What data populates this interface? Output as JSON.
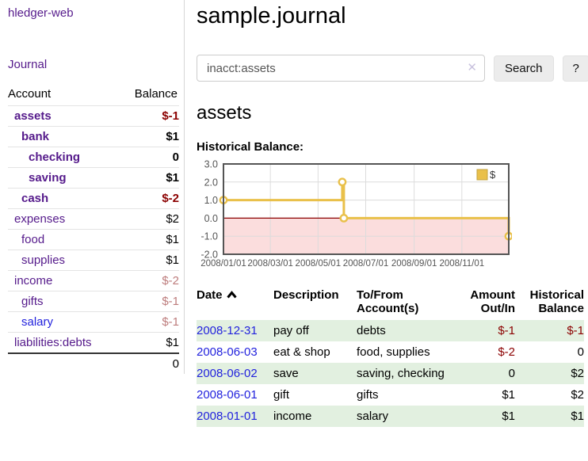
{
  "app": {
    "title": "hledger-web"
  },
  "sidebar": {
    "journal_link": "Journal",
    "accounts_table": {
      "headers": [
        "Account",
        "Balance"
      ],
      "rows": [
        {
          "name": "assets",
          "depth": 1,
          "bold": true,
          "name_class": "c-purple",
          "balance": "$-1",
          "balance_class": "amt-neg"
        },
        {
          "name": "bank",
          "depth": 2,
          "bold": true,
          "name_class": "c-purple",
          "balance": "$1",
          "balance_class": "amt-plain"
        },
        {
          "name": "checking",
          "depth": 3,
          "bold": true,
          "name_class": "c-purple",
          "balance": "0",
          "balance_class": "amt-plain"
        },
        {
          "name": "saving",
          "depth": 3,
          "bold": true,
          "name_class": "c-purple",
          "balance": "$1",
          "balance_class": "amt-plain"
        },
        {
          "name": "cash",
          "depth": 2,
          "bold": true,
          "name_class": "c-purple",
          "balance": "$-2",
          "balance_class": "amt-neg"
        },
        {
          "name": "expenses",
          "depth": 1,
          "bold": false,
          "name_class": "c-purple",
          "balance": "$2",
          "balance_class": "amt-plain"
        },
        {
          "name": "food",
          "depth": 2,
          "bold": false,
          "name_class": "c-purple",
          "balance": "$1",
          "balance_class": "amt-plain"
        },
        {
          "name": "supplies",
          "depth": 2,
          "bold": false,
          "name_class": "c-purple",
          "balance": "$1",
          "balance_class": "amt-plain"
        },
        {
          "name": "income",
          "depth": 1,
          "bold": false,
          "name_class": "c-purple",
          "balance": "$-2",
          "balance_class": "amt-rose"
        },
        {
          "name": "gifts",
          "depth": 2,
          "bold": false,
          "name_class": "c-purple",
          "balance": "$-1",
          "balance_class": "amt-rose"
        },
        {
          "name": "salary",
          "depth": 2,
          "bold": false,
          "name_class": "c-blue",
          "balance": "$-1",
          "balance_class": "amt-rose"
        },
        {
          "name": "liabilities:debts",
          "depth": 1,
          "bold": false,
          "name_class": "c-purple",
          "balance": "$1",
          "balance_class": "amt-plain"
        }
      ],
      "total": "0"
    }
  },
  "main": {
    "title": "sample.journal",
    "search": {
      "value": "inacct:assets",
      "clear_label": "✕",
      "button_label": "Search",
      "help_label": "?"
    },
    "section_title": "assets",
    "chart_label": "Historical Balance:",
    "transactions": {
      "headers": [
        "Date",
        "Description",
        "To/From Account(s)",
        "Amount Out/In",
        "Historical Balance"
      ],
      "rows": [
        {
          "date": "2008-12-31",
          "description": "pay off",
          "accounts": "debts",
          "amount": "$-1",
          "amount_class": "amt-neg",
          "balance": "$-1",
          "balance_class": "amt-neg",
          "shaded": true
        },
        {
          "date": "2008-06-03",
          "description": "eat & shop",
          "accounts": "food, supplies",
          "amount": "$-2",
          "amount_class": "amt-neg",
          "balance": "0",
          "balance_class": "amt-plain",
          "shaded": false
        },
        {
          "date": "2008-06-02",
          "description": "save",
          "accounts": "saving, checking",
          "amount": "0",
          "amount_class": "amt-plain",
          "balance": "$2",
          "balance_class": "amt-plain",
          "shaded": true
        },
        {
          "date": "2008-06-01",
          "description": "gift",
          "accounts": "gifts",
          "amount": "$1",
          "amount_class": "amt-plain",
          "balance": "$2",
          "balance_class": "amt-plain",
          "shaded": false
        },
        {
          "date": "2008-01-01",
          "description": "income",
          "accounts": "salary",
          "amount": "$1",
          "amount_class": "amt-plain",
          "balance": "$1",
          "balance_class": "amt-plain",
          "shaded": true
        }
      ]
    }
  },
  "chart_data": {
    "type": "line",
    "title": "Historical Balance:",
    "legend": {
      "label": "$",
      "position": "top-right"
    },
    "step": true,
    "x_range": [
      "2008-01-01",
      "2008-12-31"
    ],
    "points": [
      {
        "date": "2008-01-01",
        "value": 1
      },
      {
        "date": "2008-06-01",
        "value": 2
      },
      {
        "date": "2008-06-03",
        "value": 0
      },
      {
        "date": "2008-12-31",
        "value": -1
      }
    ],
    "ylim": [
      -2,
      3
    ],
    "yticks": [
      3,
      2,
      1,
      0,
      -1,
      -2
    ],
    "ytick_labels": [
      "3.0",
      "2.0",
      "1.0",
      "0.0",
      "-1.0",
      "-2.0"
    ],
    "xticks": [
      "2008-01-01",
      "2008-03-01",
      "2008-05-01",
      "2008-07-01",
      "2008-09-01",
      "2008-11-01"
    ],
    "xtick_labels": [
      "2008/01/01",
      "2008/03/01",
      "2008/05/01",
      "2008/07/01",
      "2008/09/01",
      "2008/11/01"
    ],
    "grid": true,
    "colors": {
      "series": "#e9c04a",
      "marker_fill": "#ffffff",
      "legend_border": "#c2a23e",
      "negative_region": "#fbdddd",
      "zero_line": "#8b0000",
      "grid": "#dcdcdc",
      "border": "#545454",
      "tick_text": "#555555"
    }
  }
}
